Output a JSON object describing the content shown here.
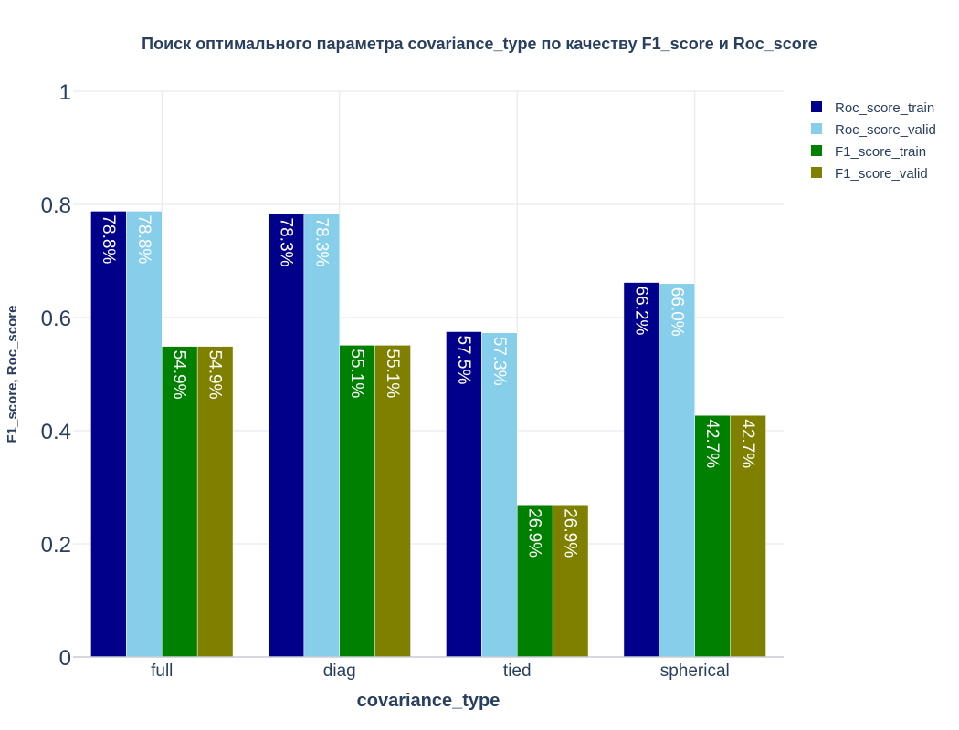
{
  "chart_data": {
    "type": "bar",
    "title": "Поиск оптимального параметра covariance_type по качеству F1_score и Roc_score",
    "xlabel": "covariance_type",
    "ylabel": "F1_score, Roc_score",
    "categories": [
      "full",
      "diag",
      "tied",
      "spherical"
    ],
    "ylim": [
      0,
      1
    ],
    "yticks": [
      0,
      0.2,
      0.4,
      0.6,
      0.8,
      1
    ],
    "ytick_labels": [
      "0",
      "0.2",
      "0.4",
      "0.6",
      "0.8",
      "1"
    ],
    "grid": true,
    "legend_position": "top-right",
    "series": [
      {
        "name": "Roc_score_train",
        "color": "#00008b",
        "values": [
          0.788,
          0.783,
          0.575,
          0.662
        ],
        "labels": [
          "78.8%",
          "78.3%",
          "57.5%",
          "66.2%"
        ]
      },
      {
        "name": "Roc_score_valid",
        "color": "#87ceeb",
        "values": [
          0.788,
          0.783,
          0.573,
          0.66
        ],
        "labels": [
          "78.8%",
          "78.3%",
          "57.3%",
          "66.0%"
        ]
      },
      {
        "name": "F1_score_train",
        "color": "#008000",
        "values": [
          0.549,
          0.551,
          0.269,
          0.427
        ],
        "labels": [
          "54.9%",
          "55.1%",
          "26.9%",
          "42.7%"
        ]
      },
      {
        "name": "F1_score_valid",
        "color": "#808000",
        "values": [
          0.549,
          0.551,
          0.269,
          0.427
        ],
        "labels": [
          "54.9%",
          "55.1%",
          "26.9%",
          "42.7%"
        ]
      }
    ]
  }
}
